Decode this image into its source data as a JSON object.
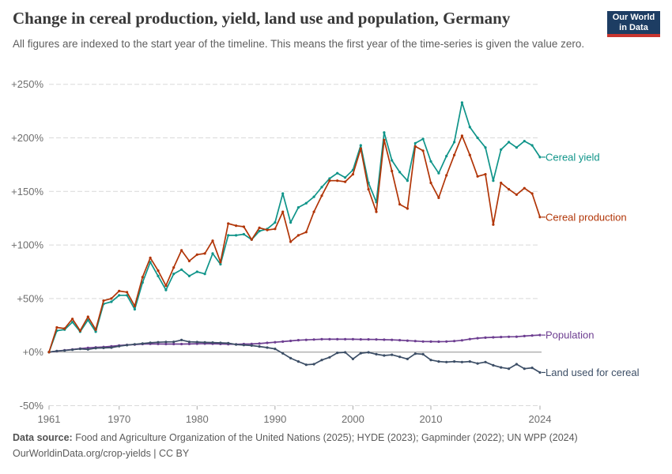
{
  "header": {
    "logo_line1": "Our World",
    "logo_line2": "in Data"
  },
  "chart_data": {
    "type": "line",
    "title": "Change in cereal production, yield, land use and population, Germany",
    "subtitle": "All figures are indexed to the start year of the timeline. This means the first year of the time-series is given the value zero.",
    "xlabel": "",
    "ylabel": "",
    "x_range": [
      1961,
      2024
    ],
    "y_range": [
      -50,
      250
    ],
    "grid": "horizontal-dashed",
    "legend_position": "line-end-labels-right",
    "x": [
      1961,
      1962,
      1963,
      1964,
      1965,
      1966,
      1967,
      1968,
      1969,
      1970,
      1971,
      1972,
      1973,
      1974,
      1975,
      1976,
      1977,
      1978,
      1979,
      1980,
      1981,
      1982,
      1983,
      1984,
      1985,
      1986,
      1987,
      1988,
      1989,
      1990,
      1991,
      1992,
      1993,
      1994,
      1995,
      1996,
      1997,
      1998,
      1999,
      2000,
      2001,
      2002,
      2003,
      2004,
      2005,
      2006,
      2007,
      2008,
      2009,
      2010,
      2011,
      2012,
      2013,
      2014,
      2015,
      2016,
      2017,
      2018,
      2019,
      2020,
      2021,
      2022,
      2023,
      2024
    ],
    "y_ticks": [
      {
        "value": 250,
        "label": "+250%"
      },
      {
        "value": 200,
        "label": "+200%"
      },
      {
        "value": 150,
        "label": "+150%"
      },
      {
        "value": 100,
        "label": "+100%"
      },
      {
        "value": 50,
        "label": "+50%"
      },
      {
        "value": 0,
        "label": "+0%"
      },
      {
        "value": -50,
        "label": "-50%"
      }
    ],
    "x_ticks": [
      {
        "year": 1961,
        "label": "1961"
      },
      {
        "year": 1970,
        "label": "1970"
      },
      {
        "year": 1980,
        "label": "1980"
      },
      {
        "year": 1990,
        "label": "1990"
      },
      {
        "year": 2000,
        "label": "2000"
      },
      {
        "year": 2010,
        "label": "2010"
      },
      {
        "year": 2024,
        "label": "2024"
      }
    ],
    "series": [
      {
        "id": "population",
        "label": "Population",
        "color": "#6D3E91",
        "values": [
          0,
          0.9,
          1.7,
          2.5,
          3.3,
          4,
          4.4,
          4.8,
          5.4,
          6.1,
          6.7,
          7.1,
          7.5,
          7.7,
          7.6,
          7.5,
          7.5,
          7.5,
          7.6,
          7.8,
          7.9,
          7.8,
          7.6,
          7.4,
          7.3,
          7.5,
          7.6,
          8,
          8.6,
          9.2,
          9.8,
          10.5,
          11.1,
          11.4,
          11.7,
          12,
          12,
          12,
          12,
          12,
          11.9,
          11.9,
          11.8,
          11.6,
          11.4,
          11.1,
          10.7,
          10.3,
          9.9,
          9.8,
          9.7,
          9.9,
          10.3,
          11,
          12.2,
          13,
          13.5,
          13.8,
          14.1,
          14.3,
          14.4,
          15,
          15.5,
          15.9
        ]
      },
      {
        "id": "land_used_for_cereal",
        "label": "Land used for cereal",
        "color": "#3C4E66",
        "values": [
          0,
          1,
          1.5,
          2.2,
          3,
          2.5,
          3.7,
          3.9,
          4.2,
          5.5,
          6.5,
          7.3,
          8,
          8.8,
          9.2,
          9.5,
          9.6,
          11.3,
          9.6,
          9.4,
          9.1,
          8.9,
          8.6,
          8.3,
          7.1,
          6.6,
          6.1,
          5.2,
          4.2,
          3,
          -1.2,
          -5.7,
          -8.8,
          -11.8,
          -11.3,
          -7.4,
          -4.9,
          -0.7,
          -0.2,
          -6.4,
          -1,
          -0.2,
          -2,
          -3.2,
          -2.5,
          -4.4,
          -6.4,
          -1.5,
          -2,
          -7.4,
          -8.8,
          -9.3,
          -8.8,
          -9.3,
          -8.8,
          -10.6,
          -9.3,
          -12.3,
          -14.3,
          -15.5,
          -11.3,
          -15.5,
          -14.7,
          -19
        ]
      },
      {
        "id": "cereal_yield",
        "label": "Cereal yield",
        "color": "#0F9489",
        "values": [
          0,
          20,
          21,
          28,
          19,
          30,
          19,
          45,
          47,
          53,
          53,
          40,
          65,
          84,
          71,
          58,
          73,
          77,
          71,
          75,
          73,
          92,
          82,
          109,
          109,
          110,
          105,
          113,
          115,
          121,
          148,
          121,
          135,
          139,
          145,
          154,
          162,
          167,
          163,
          170,
          193,
          158,
          140,
          205,
          179,
          168,
          160,
          195,
          199,
          178,
          167,
          183,
          196,
          233,
          210,
          200,
          191,
          160,
          189,
          196,
          191,
          197,
          193,
          182
        ]
      },
      {
        "id": "cereal_production",
        "label": "Cereal production",
        "color": "#B13507",
        "values": [
          0,
          23,
          22,
          31,
          20,
          33,
          21,
          48,
          50,
          57,
          56,
          43,
          70,
          88,
          76,
          62,
          79,
          95,
          85,
          91,
          92,
          104,
          84,
          120,
          118,
          117,
          105,
          116,
          114,
          115,
          131,
          103,
          109,
          112,
          131,
          146,
          160,
          160,
          159,
          166,
          190,
          152,
          131,
          198,
          169,
          138,
          134,
          192,
          188,
          158,
          144,
          165,
          184,
          202,
          184,
          164,
          166,
          119,
          158,
          152,
          147,
          153,
          148,
          126
        ]
      }
    ]
  },
  "colors": {
    "grid": "#d9d9d9",
    "zero_line": "#8f8f8f",
    "tick": "#a8a8a8",
    "axis_text": "#6e6e6e",
    "logo_bg": "#1D3D63",
    "logo_red": "#C8352F"
  },
  "footer": {
    "datasource_label": "Data source:",
    "datasource_text": " Food and Agriculture Organization of the United Nations (2025); HYDE (2023); Gapminder (2022); UN WPP (2024)",
    "license_line": "OurWorldinData.org/crop-yields | CC BY"
  }
}
